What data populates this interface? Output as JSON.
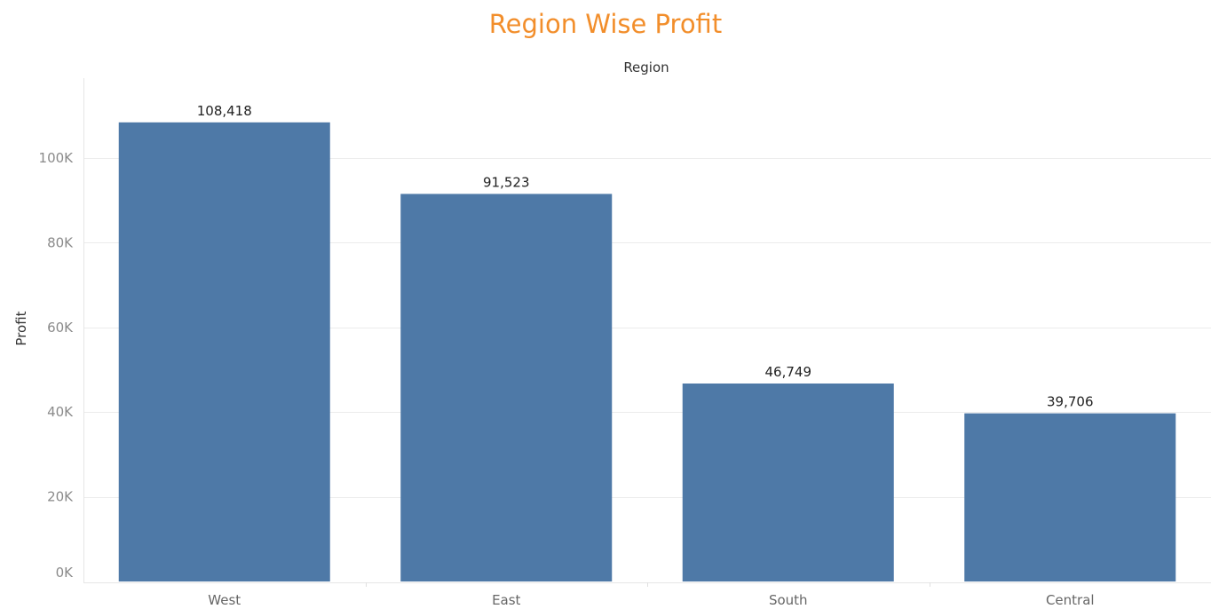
{
  "chart_data": {
    "type": "bar",
    "title": "Region Wise Profit",
    "column_header": "Region",
    "ylabel": "Profit",
    "categories": [
      "West",
      "East",
      "South",
      "Central"
    ],
    "values": [
      108418,
      91523,
      46749,
      39706
    ],
    "value_labels": [
      "108,418",
      "91,523",
      "46,749",
      "39,706"
    ],
    "ylim": [
      0,
      112000
    ],
    "yticks": [
      0,
      20000,
      40000,
      60000,
      80000,
      100000
    ],
    "ytick_labels": [
      "0K",
      "20K",
      "40K",
      "60K",
      "80K",
      "100K"
    ],
    "grid": true,
    "legend": "none",
    "colors": {
      "bar": "#4e79a7",
      "title": "#f28e2b",
      "grid": "#ececec"
    }
  }
}
